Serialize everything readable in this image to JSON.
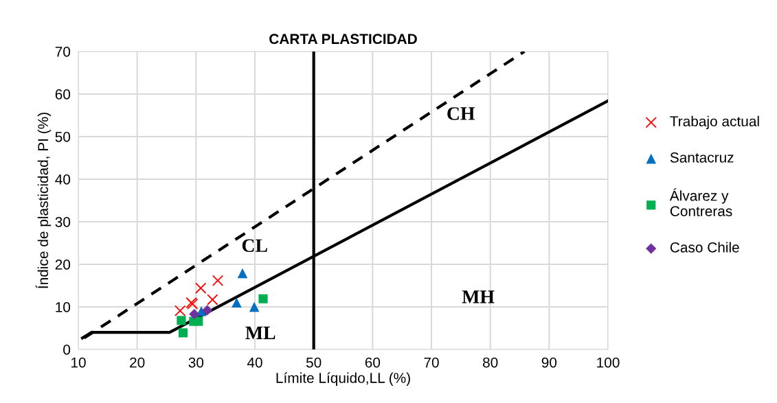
{
  "chart_data": {
    "type": "scatter",
    "title": "CARTA PLASTICIDAD",
    "xlabel": "Límite Líquido,LL (%)",
    "ylabel": "Índice de plasticidad, PI (%)",
    "xlim": [
      10,
      100
    ],
    "xticks": [
      10,
      20,
      30,
      40,
      50,
      60,
      70,
      80,
      90,
      100
    ],
    "ylim": [
      0,
      70
    ],
    "yticks": [
      0,
      10,
      20,
      30,
      40,
      50,
      60,
      70
    ],
    "grid": true,
    "legend": "right",
    "series": [
      {
        "name": "Trabajo actual",
        "color": "#ff0000",
        "marker": "cross",
        "x": [
          27.3,
          29.2,
          29.4,
          30.8,
          33.7,
          32.8
        ],
        "values": [
          9.1,
          11.0,
          10.7,
          14.4,
          16.2,
          11.7
        ]
      },
      {
        "name": "Santacruz",
        "color": "#0070c0",
        "marker": "triangle",
        "x": [
          37.9,
          36.9,
          39.9,
          30.9
        ],
        "values": [
          17.9,
          11.0,
          10.0,
          9.0
        ]
      },
      {
        "name": "Álvarez y\nContreras",
        "color": "#00b050",
        "marker": "square",
        "x": [
          27.5,
          27.8,
          29.6,
          30.4,
          41.4
        ],
        "values": [
          6.8,
          3.9,
          6.6,
          6.6,
          11.9
        ]
      },
      {
        "name": "Caso Chile",
        "color": "#7030a0",
        "marker": "diamond",
        "x": [
          29.7,
          31.9
        ],
        "values": [
          8.3,
          9.2
        ]
      },
      {
        "type": "line",
        "color": "#000000",
        "line_style": "solid",
        "x": [
          10.7,
          12.2,
          25.5,
          100
        ],
        "values": [
          2.7,
          4,
          4,
          58.4
        ]
      },
      {
        "type": "line",
        "color": "#000000",
        "line_style": "dashed",
        "x": [
          11,
          85.8
        ],
        "values": [
          2.7,
          70
        ]
      }
    ],
    "ref_lines": [
      {
        "axis": "x",
        "value": 50,
        "color": "#000000"
      }
    ],
    "annotations": [
      "CH",
      "CL",
      "MH",
      "ML"
    ]
  }
}
